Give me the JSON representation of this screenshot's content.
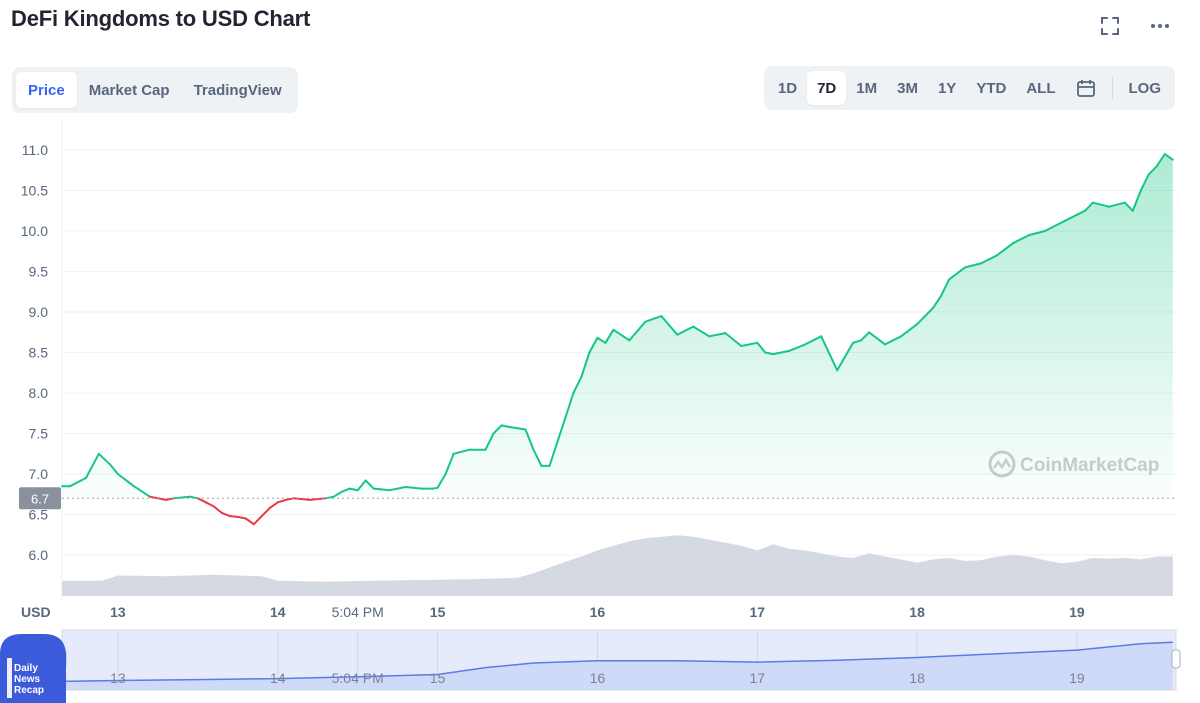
{
  "title": "DeFi Kingdoms to USD Chart",
  "icons": {
    "fullscreen": "expand-icon",
    "more": "more-dots-icon",
    "calendar": "calendar-icon",
    "watermark": "coinmarketcap-logo"
  },
  "tabs": [
    {
      "label": "Price",
      "active": true
    },
    {
      "label": "Market Cap",
      "active": false
    },
    {
      "label": "TradingView",
      "active": false
    }
  ],
  "ranges": [
    {
      "label": "1D",
      "active": false
    },
    {
      "label": "7D",
      "active": true
    },
    {
      "label": "1M",
      "active": false
    },
    {
      "label": "3M",
      "active": false
    },
    {
      "label": "1Y",
      "active": false
    },
    {
      "label": "YTD",
      "active": false
    },
    {
      "label": "ALL",
      "active": false
    }
  ],
  "log_label": "LOG",
  "watermark": "CoinMarketCap",
  "badge": {
    "lines": [
      "Daily",
      "News",
      "Recap"
    ]
  },
  "colors": {
    "up": "#16c784",
    "down": "#ea3943",
    "volume": "#d5d9e2",
    "nav_line": "#5b7be8",
    "accent": "#3861fb"
  },
  "chart_data": [
    {
      "type": "line",
      "title": "",
      "ylabel": "",
      "y_unit_label": "USD",
      "y_ticks": [
        6.0,
        6.5,
        7.0,
        7.5,
        8.0,
        8.5,
        9.0,
        9.5,
        10.0,
        10.5,
        11.0
      ],
      "ylim": [
        5.5,
        11.2
      ],
      "x_tick_labels": [
        "13",
        "14",
        "5:04 PM",
        "15",
        "16",
        "17",
        "18",
        "19"
      ],
      "xlim": [
        12.65,
        19.62
      ],
      "current_price_label": "6.7",
      "reference_value": 6.7,
      "grid": true,
      "series": [
        {
          "x": [
            12.65,
            12.7,
            12.8,
            12.88,
            12.95,
            13.0,
            13.1,
            13.2,
            13.3,
            13.35,
            13.45,
            13.5,
            13.55,
            13.6,
            13.65,
            13.7,
            13.75,
            13.8,
            13.85,
            13.9,
            13.95,
            14.0,
            14.05,
            14.1,
            14.2,
            14.3,
            14.35,
            14.4,
            14.45,
            14.5,
            14.55,
            14.6,
            14.7,
            14.8,
            14.9,
            14.97,
            15.0,
            15.05,
            15.1,
            15.2,
            15.3,
            15.35,
            15.4,
            15.45,
            15.55,
            15.6,
            15.65,
            15.7,
            15.75,
            15.8,
            15.85,
            15.9,
            15.95,
            16.0,
            16.05,
            16.1,
            16.2,
            16.3,
            16.4,
            16.5,
            16.6,
            16.7,
            16.8,
            16.9,
            17.0,
            17.05,
            17.1,
            17.2,
            17.3,
            17.4,
            17.5,
            17.6,
            17.65,
            17.7,
            17.8,
            17.9,
            18.0,
            18.1,
            18.15,
            18.2,
            18.3,
            18.4,
            18.5,
            18.6,
            18.7,
            18.8,
            18.9,
            19.0,
            19.05,
            19.1,
            19.2,
            19.3,
            19.35,
            19.4,
            19.45,
            19.5,
            19.55,
            19.6
          ],
          "values": [
            6.85,
            6.85,
            6.95,
            7.25,
            7.12,
            7.0,
            6.85,
            6.72,
            6.68,
            6.7,
            6.72,
            6.7,
            6.65,
            6.6,
            6.52,
            6.48,
            6.47,
            6.45,
            6.38,
            6.48,
            6.58,
            6.65,
            6.68,
            6.7,
            6.68,
            6.7,
            6.72,
            6.78,
            6.82,
            6.8,
            6.92,
            6.82,
            6.8,
            6.84,
            6.82,
            6.82,
            6.83,
            7.0,
            7.25,
            7.3,
            7.3,
            7.5,
            7.6,
            7.58,
            7.55,
            7.3,
            7.1,
            7.1,
            7.4,
            7.7,
            8.0,
            8.2,
            8.5,
            8.68,
            8.62,
            8.78,
            8.65,
            8.88,
            8.95,
            8.72,
            8.82,
            8.7,
            8.74,
            8.58,
            8.62,
            8.5,
            8.48,
            8.52,
            8.6,
            8.7,
            8.28,
            8.62,
            8.65,
            8.75,
            8.6,
            8.7,
            8.85,
            9.05,
            9.2,
            9.4,
            9.55,
            9.6,
            9.7,
            9.85,
            9.95,
            10.0,
            10.1,
            10.2,
            10.25,
            10.35,
            10.3,
            10.35,
            10.25,
            10.5,
            10.7,
            10.8,
            10.95,
            10.88
          ]
        }
      ]
    },
    {
      "type": "area",
      "title": "",
      "series": [
        {
          "x": [
            12.65,
            12.9,
            13.0,
            13.3,
            13.6,
            13.9,
            14.0,
            14.3,
            14.6,
            14.9,
            15.2,
            15.5,
            15.6,
            15.8,
            15.9,
            16.0,
            16.1,
            16.2,
            16.3,
            16.4,
            16.5,
            16.6,
            16.7,
            16.8,
            16.9,
            17.0,
            17.1,
            17.2,
            17.3,
            17.4,
            17.5,
            17.6,
            17.7,
            17.8,
            17.9,
            18.0,
            18.1,
            18.2,
            18.3,
            18.4,
            18.5,
            18.6,
            18.7,
            18.8,
            18.9,
            19.0,
            19.1,
            19.2,
            19.3,
            19.4,
            19.5,
            19.6
          ],
          "values": [
            0.2,
            0.2,
            0.27,
            0.26,
            0.28,
            0.26,
            0.2,
            0.19,
            0.2,
            0.21,
            0.22,
            0.24,
            0.3,
            0.45,
            0.52,
            0.6,
            0.66,
            0.72,
            0.76,
            0.78,
            0.8,
            0.78,
            0.74,
            0.7,
            0.66,
            0.6,
            0.68,
            0.62,
            0.6,
            0.56,
            0.52,
            0.5,
            0.56,
            0.52,
            0.48,
            0.44,
            0.48,
            0.5,
            0.46,
            0.47,
            0.52,
            0.54,
            0.52,
            0.47,
            0.43,
            0.45,
            0.5,
            0.49,
            0.5,
            0.48,
            0.52,
            0.52
          ]
        }
      ]
    },
    {
      "type": "line",
      "title": "",
      "series": [
        {
          "x": [
            12.65,
            13.0,
            13.5,
            14.0,
            14.5,
            15.0,
            15.3,
            15.6,
            16.0,
            16.5,
            17.0,
            17.5,
            18.0,
            18.5,
            19.0,
            19.4,
            19.6
          ],
          "values": [
            0.1,
            0.12,
            0.14,
            0.16,
            0.2,
            0.25,
            0.4,
            0.5,
            0.55,
            0.55,
            0.52,
            0.56,
            0.62,
            0.7,
            0.78,
            0.92,
            0.95
          ]
        }
      ]
    }
  ]
}
